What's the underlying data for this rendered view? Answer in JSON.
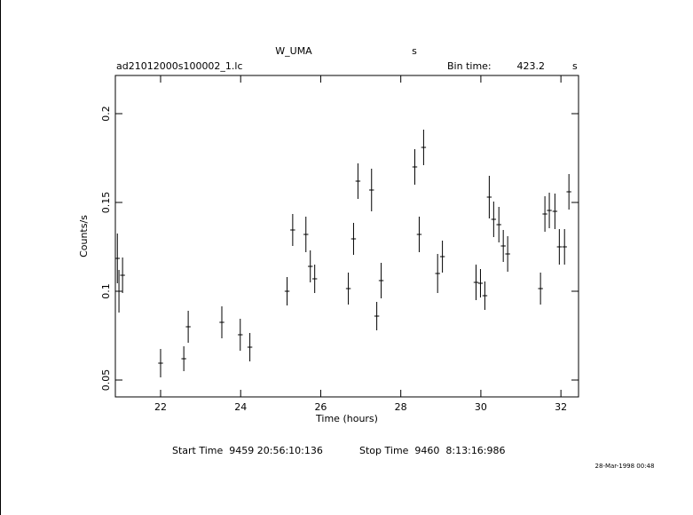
{
  "chart_data": {
    "type": "errorbar",
    "title": "W_UMA",
    "title_unit": "s",
    "subtitle": "ad21012000s100002_1.lc",
    "bin_label": "Bin time:",
    "bin_value": "423.2",
    "bin_unit": "s",
    "xlabel": "Time (hours)",
    "ylabel": "Counts/s",
    "start_time": "Start Time  9459 20:56:10:136",
    "stop_time": "Stop Time  9460  8:13:16:986",
    "timestamp": "28-Mar-1998 00:48",
    "xlim": [
      20.87,
      32.44
    ],
    "ylim": [
      0.0405,
      0.2215
    ],
    "xticks": [
      22,
      24,
      26,
      28,
      30,
      32
    ],
    "yticks": [
      0.05,
      0.1,
      0.15,
      0.2
    ],
    "color": "#000000",
    "x_error": 0.06,
    "x": [
      20.92,
      20.96,
      21.05,
      22.0,
      22.58,
      22.69,
      23.53,
      23.99,
      24.23,
      25.16,
      25.3,
      25.63,
      25.74,
      25.85,
      26.69,
      26.82,
      26.93,
      27.27,
      27.4,
      27.51,
      28.35,
      28.46,
      28.57,
      28.92,
      29.04,
      29.88,
      29.99,
      30.1,
      30.21,
      30.32,
      30.45,
      30.56,
      30.67,
      31.49,
      31.6,
      31.71,
      31.85,
      31.96,
      32.09,
      32.2
    ],
    "values": [
      0.1185,
      0.1,
      0.109,
      0.0595,
      0.062,
      0.08,
      0.0825,
      0.0755,
      0.0685,
      0.1,
      0.1345,
      0.132,
      0.114,
      0.107,
      0.1015,
      0.1295,
      0.162,
      0.157,
      0.086,
      0.106,
      0.17,
      0.132,
      0.181,
      0.11,
      0.1195,
      0.105,
      0.1045,
      0.0975,
      0.153,
      0.1405,
      0.1375,
      0.1255,
      0.121,
      0.1015,
      0.1435,
      0.1455,
      0.145,
      0.125,
      0.125,
      0.156
    ],
    "yerr": [
      0.014,
      0.012,
      0.01,
      0.008,
      0.007,
      0.009,
      0.009,
      0.009,
      0.008,
      0.008,
      0.009,
      0.01,
      0.009,
      0.008,
      0.009,
      0.009,
      0.01,
      0.012,
      0.008,
      0.01,
      0.01,
      0.01,
      0.01,
      0.011,
      0.009,
      0.01,
      0.008,
      0.008,
      0.012,
      0.01,
      0.01,
      0.009,
      0.01,
      0.009,
      0.01,
      0.01,
      0.01,
      0.01,
      0.01,
      0.01
    ]
  }
}
